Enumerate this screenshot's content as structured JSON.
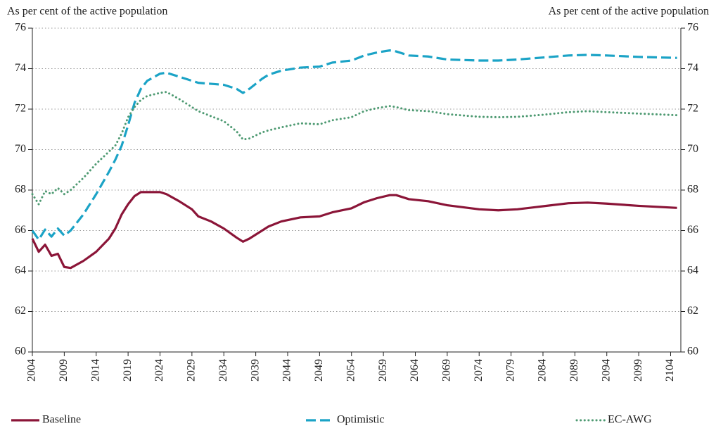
{
  "chart_data": {
    "type": "line",
    "y_label": "As per cent of the active population",
    "y2_label": "As per cent of the active population",
    "x": [
      2004,
      2005,
      2006,
      2007,
      2008,
      2009,
      2010,
      2012,
      2014,
      2016,
      2017,
      2018,
      2019,
      2020,
      2021,
      2022,
      2024,
      2025,
      2027,
      2029,
      2030,
      2032,
      2034,
      2036,
      2037,
      2038,
      2040,
      2041,
      2043,
      2046,
      2049,
      2051,
      2054,
      2056,
      2058,
      2060,
      2061,
      2063,
      2066,
      2069,
      2074,
      2077,
      2080,
      2084,
      2088,
      2091,
      2094,
      2099,
      2105
    ],
    "series": [
      {
        "name": "Baseline",
        "color": "#8b1538",
        "style": "solid",
        "values": [
          65.6,
          64.95,
          65.3,
          64.75,
          64.85,
          64.2,
          64.15,
          64.5,
          64.95,
          65.6,
          66.1,
          66.8,
          67.3,
          67.7,
          67.9,
          67.9,
          67.9,
          67.8,
          67.45,
          67.05,
          66.7,
          66.45,
          66.1,
          65.65,
          65.45,
          65.6,
          66.0,
          66.2,
          66.45,
          66.65,
          66.7,
          66.9,
          67.1,
          67.4,
          67.6,
          67.75,
          67.75,
          67.55,
          67.45,
          67.25,
          67.05,
          67.0,
          67.05,
          67.2,
          67.35,
          67.38,
          67.33,
          67.22,
          67.12
        ]
      },
      {
        "name": "Optimistic",
        "color": "#1ba3c6",
        "style": "dashed",
        "values": [
          66.0,
          65.55,
          66.05,
          65.7,
          66.1,
          65.75,
          66.0,
          66.8,
          67.8,
          68.9,
          69.5,
          70.2,
          71.2,
          72.3,
          73.0,
          73.4,
          73.75,
          73.8,
          73.6,
          73.4,
          73.3,
          73.25,
          73.2,
          73.0,
          72.8,
          73.0,
          73.5,
          73.7,
          73.9,
          74.05,
          74.1,
          74.3,
          74.4,
          74.65,
          74.8,
          74.9,
          74.85,
          74.65,
          74.6,
          74.45,
          74.4,
          74.4,
          74.45,
          74.55,
          74.65,
          74.68,
          74.65,
          74.58,
          74.53
        ]
      },
      {
        "name": "EC-AWG",
        "color": "#4e9a72",
        "style": "dotted",
        "values": [
          67.8,
          67.3,
          67.95,
          67.8,
          68.1,
          67.8,
          68.0,
          68.6,
          69.3,
          69.9,
          70.2,
          70.8,
          71.6,
          72.1,
          72.45,
          72.65,
          72.8,
          72.85,
          72.5,
          72.1,
          71.9,
          71.65,
          71.4,
          70.9,
          70.5,
          70.55,
          70.85,
          70.95,
          71.1,
          71.3,
          71.25,
          71.45,
          71.6,
          71.9,
          72.05,
          72.15,
          72.1,
          71.95,
          71.9,
          71.75,
          71.62,
          71.6,
          71.62,
          71.72,
          71.85,
          71.9,
          71.85,
          71.78,
          71.7
        ]
      }
    ],
    "xlim": [
      2004,
      2105.6
    ],
    "xticks": [
      2004,
      2009,
      2014,
      2019,
      2024,
      2029,
      2034,
      2039,
      2044,
      2049,
      2054,
      2059,
      2064,
      2069,
      2074,
      2079,
      2084,
      2089,
      2094,
      2099,
      2104
    ],
    "ylim": [
      60,
      76
    ],
    "yticks": [
      60,
      62,
      64,
      66,
      68,
      70,
      72,
      74,
      76
    ],
    "y2lim": [
      60,
      76
    ],
    "y2ticks": [
      60,
      62,
      64,
      66,
      68,
      70,
      72,
      74,
      76
    ],
    "grid": true,
    "legend": "bottom"
  }
}
